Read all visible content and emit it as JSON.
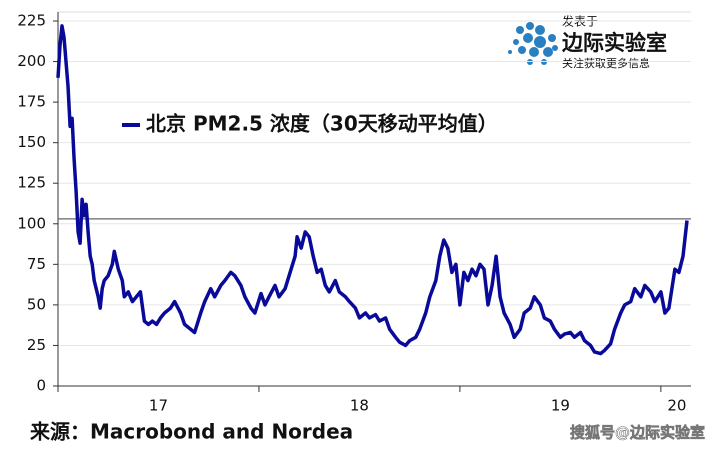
{
  "chart_data": {
    "type": "line",
    "title": "北京 PM2.5 浓度（30天移动平均值）",
    "source": "来源：Macrobond and Nordea",
    "watermark": "搜狐号@边际实验室",
    "logo": {
      "top": "发表于",
      "name": "边际实验室",
      "tagline": "关注获取更多信息"
    },
    "series": [
      {
        "name": "北京 PM2.5 浓度（30天移动平均值）",
        "color": "#0a0a9a",
        "x": [
          17.0,
          17.01,
          17.02,
          17.03,
          17.04,
          17.05,
          17.06,
          17.07,
          17.08,
          17.09,
          17.1,
          17.11,
          17.12,
          17.13,
          17.14,
          17.15,
          17.16,
          17.17,
          17.18,
          17.2,
          17.21,
          17.22,
          17.23,
          17.25,
          17.27,
          17.28,
          17.3,
          17.32,
          17.33,
          17.35,
          17.37,
          17.39,
          17.41,
          17.43,
          17.45,
          17.47,
          17.49,
          17.51,
          17.53,
          17.56,
          17.58,
          17.61,
          17.63,
          17.66,
          17.68,
          17.71,
          17.73,
          17.76,
          17.78,
          17.81,
          17.83,
          17.86,
          17.88,
          17.91,
          17.93,
          17.96,
          17.98,
          18.01,
          18.03,
          18.05,
          18.08,
          18.1,
          18.13,
          18.15,
          18.18,
          18.19,
          18.21,
          18.23,
          18.25,
          18.27,
          18.29,
          18.31,
          18.33,
          18.35,
          18.38,
          18.4,
          18.43,
          18.45,
          18.48,
          18.5,
          18.53,
          18.55,
          18.58,
          18.6,
          18.63,
          18.65,
          18.68,
          18.7,
          18.73,
          18.75,
          18.78,
          18.8,
          18.83,
          18.85,
          18.88,
          18.9,
          18.92,
          18.94,
          18.96,
          18.98,
          19.0,
          19.02,
          19.04,
          19.06,
          19.08,
          19.1,
          19.12,
          19.14,
          19.16,
          19.18,
          19.2,
          19.22,
          19.25,
          19.27,
          19.3,
          19.32,
          19.35,
          19.37,
          19.4,
          19.42,
          19.45,
          19.47,
          19.5,
          19.52,
          19.55,
          19.57,
          19.6,
          19.62,
          19.65,
          19.67,
          19.7,
          19.72,
          19.75,
          19.77,
          19.8,
          19.82,
          19.85,
          19.87,
          19.9,
          19.92,
          19.95,
          19.97,
          20.0,
          20.02,
          20.04,
          20.07,
          20.09,
          20.11,
          20.13
        ],
        "values": [
          190,
          210,
          222,
          215,
          200,
          185,
          160,
          165,
          140,
          120,
          95,
          88,
          115,
          105,
          112,
          95,
          80,
          75,
          65,
          55,
          48,
          60,
          65,
          68,
          75,
          83,
          72,
          65,
          55,
          58,
          52,
          55,
          58,
          40,
          38,
          40,
          38,
          42,
          45,
          48,
          52,
          45,
          38,
          35,
          33,
          45,
          52,
          60,
          55,
          62,
          65,
          70,
          68,
          62,
          55,
          48,
          45,
          57,
          50,
          55,
          62,
          55,
          60,
          68,
          80,
          92,
          85,
          95,
          92,
          80,
          70,
          72,
          62,
          58,
          65,
          58,
          55,
          52,
          48,
          42,
          45,
          42,
          44,
          40,
          42,
          35,
          30,
          27,
          25,
          28,
          30,
          35,
          45,
          55,
          65,
          80,
          90,
          85,
          70,
          75,
          50,
          70,
          65,
          72,
          68,
          75,
          72,
          50,
          62,
          80,
          55,
          45,
          38,
          30,
          35,
          45,
          48,
          55,
          50,
          42,
          40,
          35,
          30,
          32,
          33,
          30,
          33,
          28,
          25,
          21,
          20,
          22,
          26,
          35,
          45,
          50,
          52,
          60,
          55,
          62,
          58,
          52,
          58,
          45,
          48,
          72,
          70,
          80,
          102
        ]
      }
    ],
    "hline": 103,
    "xlim": [
      17,
      20.15
    ],
    "xticks": [
      17,
      18,
      19,
      20
    ],
    "xtick_labels": [
      {
        "value": 17.5,
        "label": "17"
      },
      {
        "value": 18.5,
        "label": "18"
      },
      {
        "value": 19.5,
        "label": "19"
      },
      {
        "value": 20.08,
        "label": "20"
      }
    ],
    "ylim": [
      0,
      225
    ],
    "yticks": [
      0,
      25,
      50,
      75,
      100,
      125,
      150,
      175,
      200,
      225
    ],
    "grid": true
  }
}
